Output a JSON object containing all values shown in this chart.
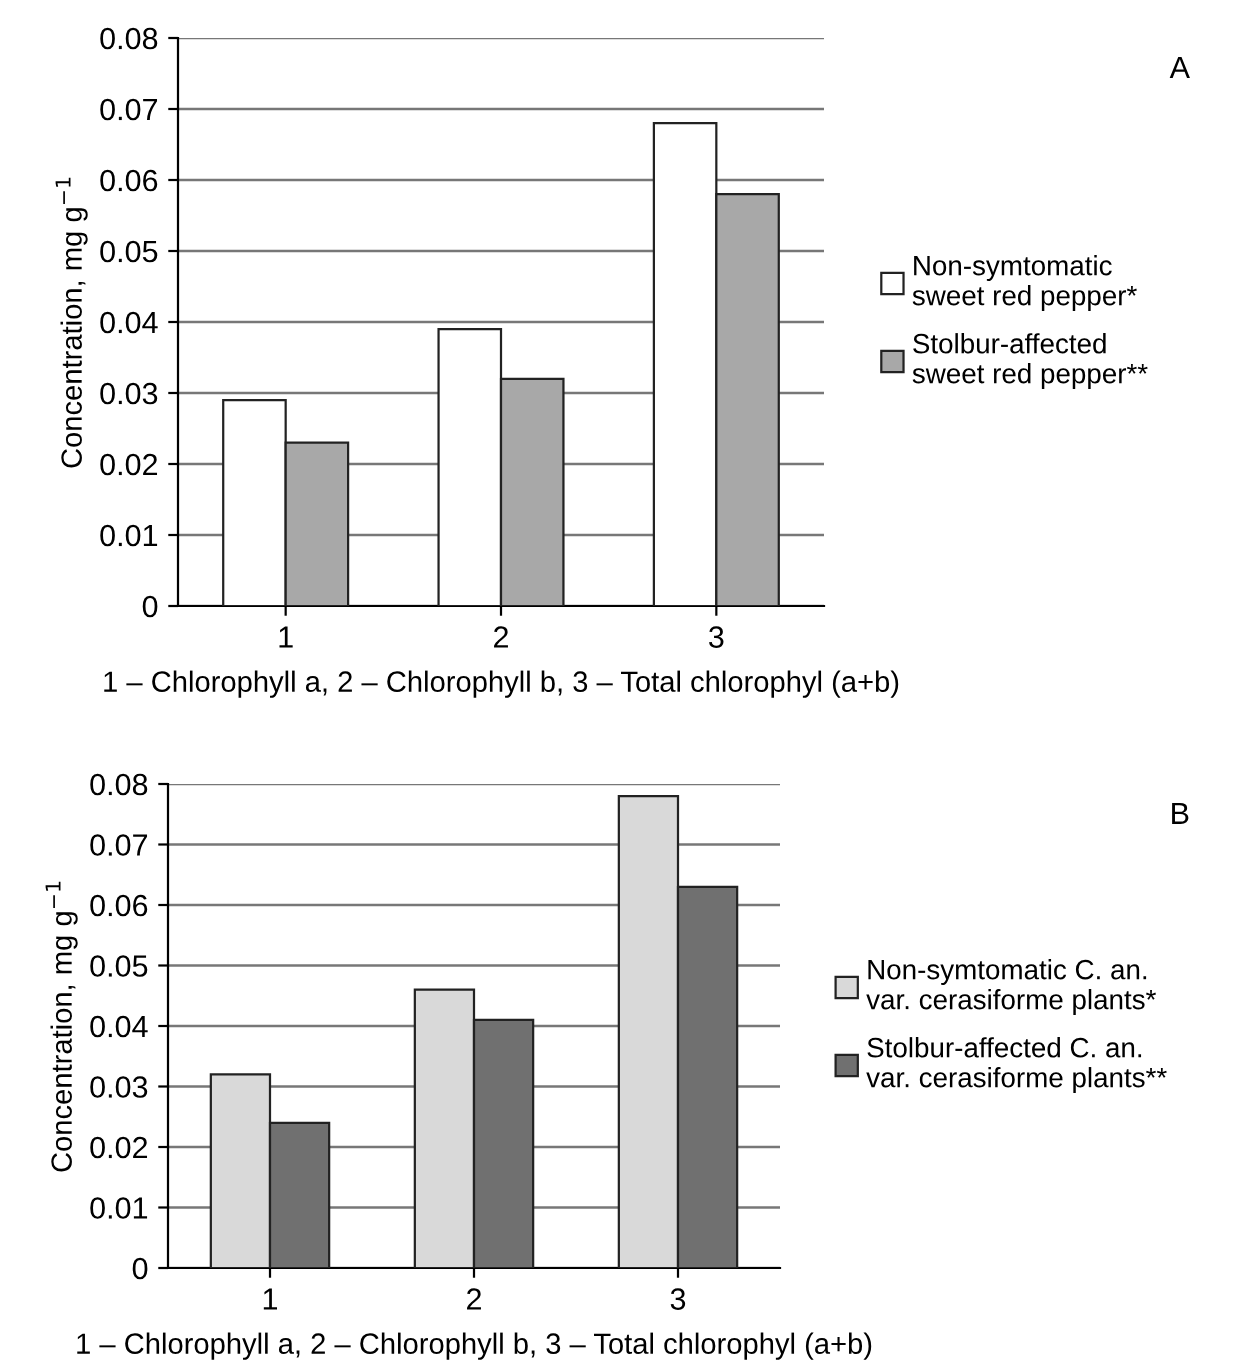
{
  "chart_data": [
    {
      "type": "bar",
      "categories": [
        "1",
        "2",
        "3"
      ],
      "xlabel": "1 – Chlorophyll a, 2 – Chlorophyll b, 3 – Total chlorophyl (a+b)",
      "ylabel": "Concentration, mg g$^{−1}$",
      "ylim": [
        0,
        0.08
      ],
      "yticks": [
        0,
        0.01,
        0.02,
        0.03,
        0.04,
        0.05,
        0.06,
        0.07,
        0.08
      ],
      "grid": "y",
      "legend": "right",
      "annotations": [
        "A"
      ],
      "series": [
        {
          "name": "Non-symtomatic sweet red pepper*",
          "color": "#ffffff",
          "values": [
            0.029,
            0.039,
            0.068
          ]
        },
        {
          "name": "Stolbur-affected sweet red pepper**",
          "color": "#a8a8a8",
          "values": [
            0.023,
            0.032,
            0.058
          ]
        }
      ]
    },
    {
      "type": "bar",
      "categories": [
        "1",
        "2",
        "3"
      ],
      "xlabel": "1 – Chlorophyll a, 2 – Chlorophyll b, 3 – Total chlorophyl (a+b)",
      "ylabel": "Concentration, mg g$^{−1}$",
      "ylim": [
        0,
        0.08
      ],
      "yticks": [
        0,
        0.01,
        0.02,
        0.03,
        0.04,
        0.05,
        0.06,
        0.07,
        0.08
      ],
      "grid": "y",
      "legend": "right",
      "annotations": [
        "B"
      ],
      "series": [
        {
          "name": "Non-symtomatic C. an. var. cerasiforme plants*",
          "color": "#d9d9d9",
          "values": [
            0.032,
            0.046,
            0.078
          ]
        },
        {
          "name": "Stolbur-affected C. an. var. cerasiforme plants**",
          "color": "#707070",
          "values": [
            0.024,
            0.041,
            0.063
          ]
        }
      ]
    }
  ]
}
